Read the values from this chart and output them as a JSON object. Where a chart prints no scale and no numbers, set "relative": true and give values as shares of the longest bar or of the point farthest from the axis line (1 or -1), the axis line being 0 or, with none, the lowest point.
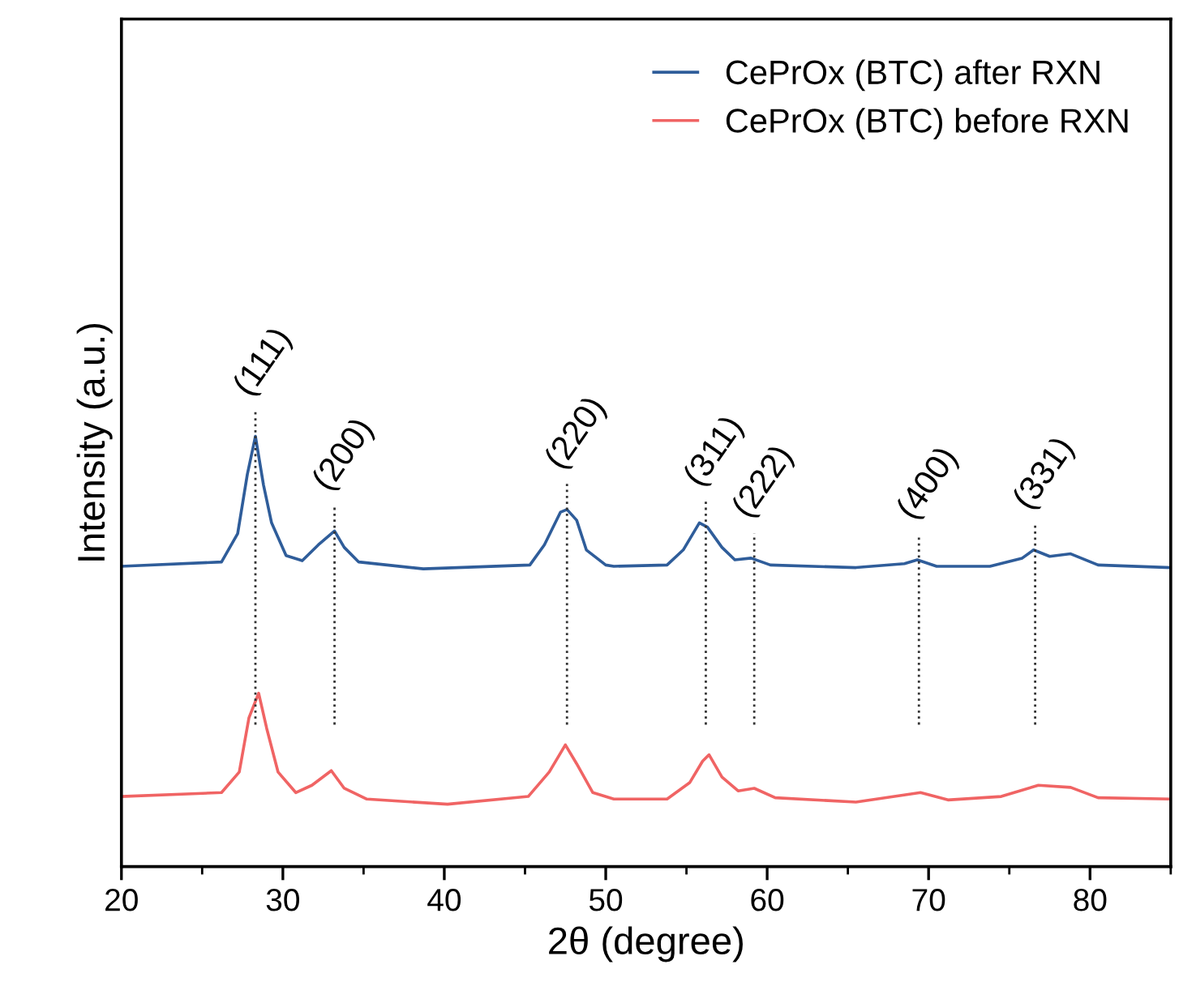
{
  "chart_data": {
    "type": "line",
    "relative": true,
    "xlabel": "2θ (degree)",
    "ylabel": "Intensity (a.u.)",
    "xlim": [
      20,
      85
    ],
    "xticks": [
      20,
      30,
      40,
      50,
      60,
      70,
      80
    ],
    "tick_labels": "x",
    "legend": "top right",
    "grid": false,
    "line_style": "solid",
    "marker": "none",
    "series": [
      {
        "name": "CePrOx (BTC) after RXN",
        "color": "#2f5d9a",
        "x": [
          20,
          26.2,
          27.2,
          27.8,
          28.3,
          28.8,
          29.3,
          30.2,
          31.2,
          32.2,
          33.2,
          33.8,
          34.7,
          38.7,
          45.3,
          46.2,
          47.2,
          47.6,
          48.2,
          48.8,
          50.0,
          50.5,
          53.8,
          54.8,
          55.8,
          56.3,
          57.2,
          58.0,
          59.0,
          60.2,
          65.5,
          68.5,
          69.3,
          70.5,
          73.8,
          75.8,
          76.5,
          77.5,
          78.8,
          80.5,
          85
        ],
        "values": [
          0.698,
          0.708,
          0.774,
          0.912,
          1.0,
          0.887,
          0.799,
          0.723,
          0.711,
          0.748,
          0.78,
          0.742,
          0.708,
          0.692,
          0.701,
          0.748,
          0.824,
          0.83,
          0.805,
          0.736,
          0.701,
          0.698,
          0.701,
          0.736,
          0.799,
          0.789,
          0.742,
          0.713,
          0.717,
          0.701,
          0.695,
          0.704,
          0.713,
          0.698,
          0.698,
          0.717,
          0.736,
          0.721,
          0.727,
          0.701,
          0.695
        ]
      },
      {
        "name": "CePrOx (BTC) before RXN",
        "color": "#f06464",
        "x": [
          20,
          26.2,
          27.3,
          27.9,
          28.5,
          29.0,
          29.7,
          30.8,
          31.8,
          33.0,
          33.8,
          35.2,
          40.2,
          45.2,
          46.5,
          47.5,
          48.2,
          49.2,
          50.5,
          53.8,
          55.2,
          56.0,
          56.4,
          57.2,
          58.2,
          59.2,
          60.5,
          65.5,
          69.5,
          71.2,
          74.5,
          76.8,
          78.8,
          80.5,
          85
        ],
        "values": [
          0.163,
          0.172,
          0.22,
          0.346,
          0.403,
          0.321,
          0.22,
          0.172,
          0.189,
          0.223,
          0.182,
          0.157,
          0.145,
          0.163,
          0.22,
          0.283,
          0.239,
          0.172,
          0.157,
          0.157,
          0.195,
          0.245,
          0.26,
          0.208,
          0.176,
          0.182,
          0.16,
          0.15,
          0.172,
          0.155,
          0.163,
          0.189,
          0.184,
          0.16,
          0.157
        ]
      }
    ],
    "ref_lines": [
      {
        "axis": "x",
        "value": 28.3,
        "color": "#333333",
        "line_style": "dotted"
      },
      {
        "axis": "x",
        "value": 33.2,
        "color": "#333333",
        "line_style": "dotted"
      },
      {
        "axis": "x",
        "value": 47.6,
        "color": "#333333",
        "line_style": "dotted"
      },
      {
        "axis": "x",
        "value": 56.2,
        "color": "#333333",
        "line_style": "dotted"
      },
      {
        "axis": "x",
        "value": 59.2,
        "color": "#333333",
        "line_style": "dotted"
      },
      {
        "axis": "x",
        "value": 69.4,
        "color": "#333333",
        "line_style": "dotted"
      },
      {
        "axis": "x",
        "value": 76.6,
        "color": "#333333",
        "line_style": "dotted"
      }
    ],
    "annotations": [
      {
        "text": "(111)",
        "x": 28.3,
        "y": 1.0
      },
      {
        "text": "(200)",
        "x": 33.2,
        "y": 0.78
      },
      {
        "text": "(220)",
        "x": 47.6,
        "y": 0.83
      },
      {
        "text": "(311)",
        "x": 56.2,
        "y": 0.79
      },
      {
        "text": "(222)",
        "x": 59.2,
        "y": 0.717
      },
      {
        "text": "(400)",
        "x": 69.4,
        "y": 0.713
      },
      {
        "text": "(331)",
        "x": 76.6,
        "y": 0.736
      }
    ]
  }
}
